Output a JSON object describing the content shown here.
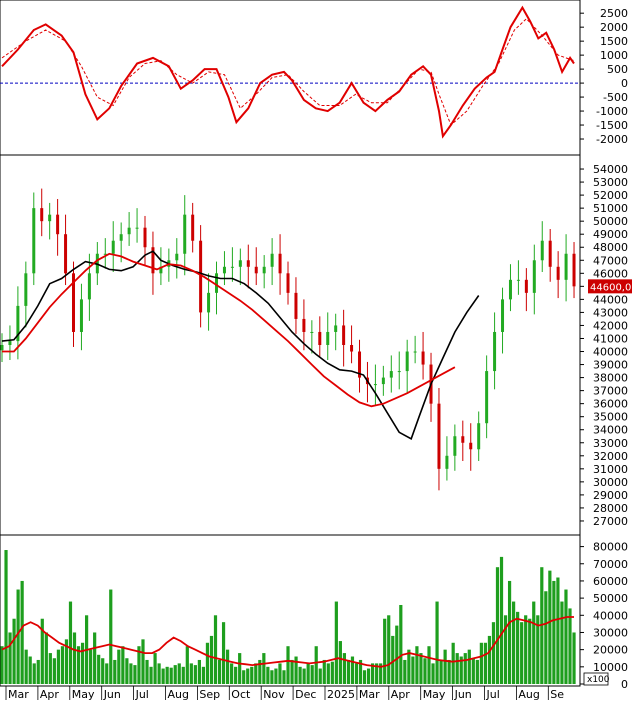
{
  "chart_data": [
    {
      "type": "line",
      "panel": "oscillator",
      "y_ticks": [
        2500,
        2000,
        1500,
        1000,
        500,
        0,
        -500,
        -1000,
        -1500,
        -2000
      ],
      "ylim": [
        -2500,
        2900
      ],
      "zero_line": true,
      "series": [
        {
          "color": "#e00000",
          "style": "solid",
          "points": [
            [
              0,
              600
            ],
            [
              4,
              1200
            ],
            [
              8,
              1900
            ],
            [
              11,
              2100
            ],
            [
              15,
              1700
            ],
            [
              18,
              1100
            ],
            [
              21,
              -400
            ],
            [
              24,
              -1300
            ],
            [
              27,
              -900
            ],
            [
              30,
              -100
            ],
            [
              34,
              700
            ],
            [
              38,
              900
            ],
            [
              42,
              600
            ],
            [
              45,
              -200
            ],
            [
              48,
              100
            ],
            [
              51,
              500
            ],
            [
              54,
              500
            ],
            [
              57,
              -500
            ],
            [
              59,
              -1400
            ],
            [
              62,
              -900
            ],
            [
              65,
              0
            ],
            [
              68,
              300
            ],
            [
              71,
              400
            ],
            [
              73,
              100
            ],
            [
              76,
              -600
            ],
            [
              79,
              -900
            ],
            [
              82,
              -1000
            ],
            [
              85,
              -700
            ],
            [
              88,
              0
            ],
            [
              91,
              -700
            ],
            [
              94,
              -1000
            ],
            [
              97,
              -600
            ],
            [
              100,
              -300
            ],
            [
              103,
              300
            ],
            [
              106,
              600
            ],
            [
              108,
              300
            ],
            [
              110,
              -1000
            ],
            [
              111,
              -1900
            ],
            [
              113,
              -1500
            ],
            [
              116,
              -800
            ],
            [
              119,
              -200
            ],
            [
              122,
              200
            ],
            [
              124,
              400
            ],
            [
              126,
              1200
            ],
            [
              128,
              2000
            ],
            [
              131,
              2700
            ],
            [
              133,
              2200
            ],
            [
              135,
              1600
            ],
            [
              137,
              1800
            ],
            [
              139,
              1200
            ],
            [
              141,
              400
            ],
            [
              143,
              900
            ],
            [
              144,
              700
            ]
          ]
        },
        {
          "color": "#e00000",
          "style": "dashed",
          "points": [
            [
              0,
              900
            ],
            [
              6,
              1500
            ],
            [
              11,
              1900
            ],
            [
              16,
              1500
            ],
            [
              20,
              600
            ],
            [
              24,
              -500
            ],
            [
              28,
              -800
            ],
            [
              32,
              200
            ],
            [
              36,
              700
            ],
            [
              40,
              800
            ],
            [
              44,
              300
            ],
            [
              48,
              0
            ],
            [
              52,
              400
            ],
            [
              56,
              300
            ],
            [
              60,
              -900
            ],
            [
              64,
              -400
            ],
            [
              68,
              200
            ],
            [
              72,
              300
            ],
            [
              76,
              -300
            ],
            [
              80,
              -800
            ],
            [
              85,
              -800
            ],
            [
              89,
              -400
            ],
            [
              93,
              -700
            ],
            [
              97,
              -700
            ],
            [
              101,
              -100
            ],
            [
              105,
              500
            ],
            [
              108,
              400
            ],
            [
              110,
              -400
            ],
            [
              113,
              -1500
            ],
            [
              117,
              -1000
            ],
            [
              121,
              -100
            ],
            [
              125,
              700
            ],
            [
              129,
              1900
            ],
            [
              132,
              2300
            ],
            [
              136,
              1700
            ],
            [
              140,
              1000
            ],
            [
              144,
              800
            ]
          ]
        }
      ]
    },
    {
      "type": "candlestick",
      "panel": "price",
      "y_ticks": [
        54000,
        53000,
        52000,
        51000,
        50000,
        49000,
        48000,
        47000,
        46000,
        45000,
        44000,
        43000,
        42000,
        41000,
        40000,
        39000,
        38000,
        37000,
        36000,
        35000,
        34000,
        33000,
        32000,
        31000,
        30000,
        29000,
        28000,
        27000
      ],
      "ylim": [
        26000,
        55000
      ],
      "last_price_label": "44600,00",
      "close": [
        40500,
        40800,
        43500,
        46000,
        51000,
        50000,
        50500,
        49000,
        46000,
        41500,
        44000,
        46000,
        47500,
        47500,
        48500,
        49000,
        49500,
        49500,
        48000,
        46000,
        46500,
        47000,
        47500,
        50500,
        48500,
        43000,
        44500,
        46000,
        46500,
        46500,
        47000,
        46500,
        46000,
        46500,
        47500,
        46000,
        44500,
        42500,
        41500,
        41500,
        40500,
        41500,
        42000,
        40500,
        40000,
        38000,
        37500,
        37500,
        38000,
        38500,
        38500,
        40000,
        40000,
        39000,
        36000,
        31000,
        32000,
        33500,
        33000,
        32500,
        34500,
        38500,
        41500,
        44000,
        45500,
        45500,
        44500,
        47000,
        48500,
        46500,
        45500,
        47500,
        45000
      ],
      "ma_black": [
        40800,
        40900,
        42000,
        43500,
        45200,
        45600,
        46300,
        46900,
        46700,
        46300,
        46200,
        46500,
        47400,
        47700,
        47000,
        46600,
        46300,
        46100,
        45800,
        45600,
        45600,
        45200,
        44500,
        43700,
        42600,
        41500,
        40600,
        39800,
        39100,
        38600,
        38500,
        38200,
        36800,
        35300,
        33800,
        33300,
        35000,
        37500,
        39500,
        41500,
        43000,
        44300
      ],
      "ma_black_x": [
        0,
        3,
        6,
        9,
        12,
        15,
        18,
        21,
        24,
        27,
        30,
        33,
        36,
        38,
        40,
        43,
        46,
        49,
        52,
        55,
        58,
        61,
        64,
        67,
        70,
        73,
        76,
        79,
        82,
        85,
        88,
        91,
        94,
        97,
        100,
        103,
        105,
        108,
        111,
        114,
        117,
        120
      ],
      "ma_red": [
        40000,
        40000,
        41000,
        42200,
        43400,
        44400,
        45300,
        46200,
        47000,
        47500,
        47300,
        46900,
        46600,
        46300,
        46700,
        46600,
        46200,
        45700,
        45100,
        44500,
        43900,
        43200,
        42400,
        41600,
        40800,
        39900,
        39000,
        38100,
        37400,
        36700,
        36100,
        35800,
        36000,
        36400,
        36800,
        37300,
        37800,
        38300,
        38800
      ],
      "ma_red_x": [
        0,
        3,
        6,
        9,
        12,
        15,
        18,
        21,
        24,
        27,
        30,
        33,
        36,
        39,
        42,
        45,
        48,
        51,
        54,
        57,
        60,
        63,
        66,
        69,
        72,
        75,
        78,
        81,
        84,
        87,
        90,
        93,
        96,
        99,
        102,
        105,
        108,
        111,
        114
      ]
    },
    {
      "type": "bar",
      "panel": "volume",
      "unit_label": "x100",
      "y_ticks": [
        80000,
        70000,
        60000,
        50000,
        40000,
        30000,
        20000,
        10000,
        0
      ],
      "ylim": [
        0,
        85000
      ],
      "x_labels": [
        "Mar",
        "Apr",
        "May",
        "Jun",
        "Jul",
        "Aug",
        "Sep",
        "Oct",
        "Nov",
        "Dec",
        "2025",
        "Mar",
        "Apr",
        "May",
        "Jun",
        "Jul",
        "Aug",
        "Se"
      ],
      "values": [
        22000,
        78000,
        30000,
        38000,
        55000,
        60000,
        20000,
        16000,
        12000,
        14000,
        38000,
        30000,
        18000,
        15000,
        20000,
        22000,
        26000,
        48000,
        30000,
        22000,
        24000,
        40000,
        20000,
        30000,
        17000,
        15000,
        12000,
        55000,
        14000,
        20000,
        22000,
        15000,
        12000,
        11000,
        22000,
        26000,
        14000,
        10000,
        18000,
        12000,
        9000,
        10000,
        9500,
        11000,
        12000,
        10000,
        22000,
        12000,
        11000,
        14000,
        10000,
        24000,
        28000,
        40000,
        14000,
        36000,
        20000,
        12000,
        10000,
        18000,
        8000,
        9000,
        10000,
        12000,
        14000,
        18000,
        10000,
        8000,
        9000,
        12000,
        8000,
        22000,
        14000,
        16000,
        10000,
        9000,
        12000,
        11000,
        22000,
        9000,
        14000,
        12000,
        13000,
        48000,
        25000,
        18000,
        14000,
        16000,
        12000,
        14000,
        8000,
        9000,
        12000,
        12000,
        12000,
        38000,
        40000,
        28000,
        34000,
        46000,
        14000,
        20000,
        16000,
        22000,
        18000,
        15000,
        22000,
        12000,
        48000,
        14000,
        20000,
        14000,
        24000,
        18000,
        16000,
        18000,
        20000,
        15000,
        14000,
        24000,
        24000,
        28000,
        36000,
        68000,
        74000,
        40000,
        60000,
        48000,
        42000,
        36000,
        40000,
        38000,
        48000,
        40000,
        68000,
        54000,
        66000,
        60000,
        62000,
        48000,
        55000,
        44000,
        30000
      ],
      "ma_red": [
        20000,
        22000,
        28000,
        34000,
        36000,
        34000,
        30000,
        27000,
        24000,
        22000,
        20000,
        19000,
        20000,
        21000,
        22000,
        23000,
        22000,
        21000,
        20000,
        19000,
        18000,
        18000,
        20000,
        24000,
        27000,
        25000,
        22000,
        20000,
        18000,
        16000,
        15000,
        14000,
        13000,
        12000,
        11500,
        11000,
        11500,
        12000,
        12500,
        13000,
        13500,
        13000,
        12500,
        12000,
        12500,
        13000,
        14000,
        15000,
        14000,
        13000,
        12000,
        11000,
        10500,
        10000,
        11000,
        14000,
        17000,
        18000,
        17000,
        16000,
        15000,
        14000,
        13500,
        13000,
        13500,
        14000,
        15000,
        16000,
        18000,
        24000,
        30000,
        36000,
        38000,
        37000,
        36000,
        34000,
        35000,
        37000,
        38000,
        39000,
        39000
      ],
      "ma_red_x_step": 1.8
    }
  ]
}
